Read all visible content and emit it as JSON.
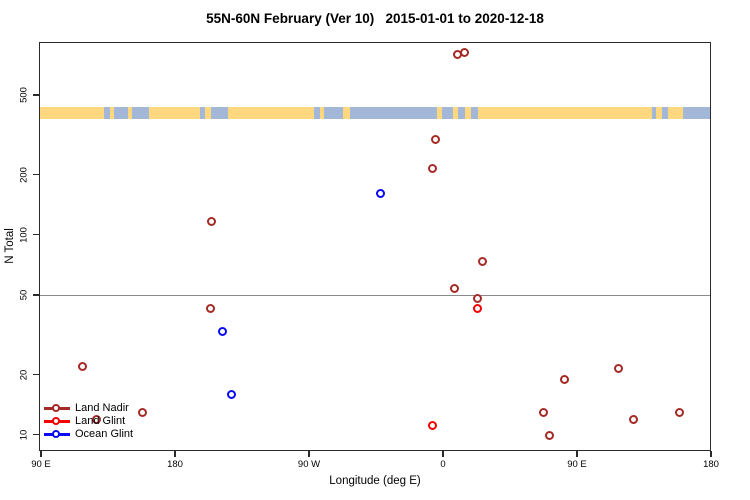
{
  "title": "55N-60N February (Ver 10)   2015-01-01 to 2020-12-18",
  "axes": {
    "xlabel": "Longitude (deg E)",
    "ylabel": "N Total",
    "x_ticks": [
      {
        "label": "90 E",
        "deg": 90
      },
      {
        "label": "180",
        "deg": 180
      },
      {
        "label": "90 W",
        "deg": 270
      },
      {
        "label": "0",
        "deg": 360
      },
      {
        "label": "90 E",
        "deg": 450
      },
      {
        "label": "180",
        "deg": 540
      }
    ],
    "y_ticks": [
      {
        "label": "500",
        "value": 500
      },
      {
        "label": "200",
        "value": 200
      },
      {
        "label": "100",
        "value": 100
      },
      {
        "label": "50",
        "value": 50
      },
      {
        "label": "20",
        "value": 20
      },
      {
        "label": "10",
        "value": 10
      }
    ],
    "reference_line_value": 50
  },
  "legend": {
    "items": [
      {
        "label": "Land Nadir",
        "color": "#A52A26"
      },
      {
        "label": "Land Glint",
        "color": "#F40000"
      },
      {
        "label": "Ocean Glint",
        "color": "#0A0AF5"
      }
    ]
  },
  "map_strip": {
    "ocean_color": "#A3B8D8",
    "land_color": "#FFD77E",
    "land_segments": [
      [
        0.0,
        0.096
      ],
      [
        0.104,
        0.11
      ],
      [
        0.132,
        0.138
      ],
      [
        0.163,
        0.239
      ],
      [
        0.247,
        0.255
      ],
      [
        0.28,
        0.409
      ],
      [
        0.418,
        0.424
      ],
      [
        0.452,
        0.462
      ],
      [
        0.593,
        0.6
      ],
      [
        0.616,
        0.624
      ],
      [
        0.634,
        0.643
      ],
      [
        0.653,
        0.913
      ],
      [
        0.92,
        0.929
      ],
      [
        0.938,
        0.96
      ]
    ]
  },
  "chart_data": {
    "type": "scatter",
    "title": "55N-60N February (Ver 10)   2015-01-01 to 2020-12-18",
    "xlabel": "Longitude (deg E)",
    "ylabel": "N Total",
    "x_axis_deg_range": [
      90,
      540
    ],
    "y_axis_log_range": [
      7.5,
      1000
    ],
    "grid": false,
    "legend_position": "bottom-left",
    "reference_line_y": 50,
    "series": [
      {
        "name": "Land Nadir",
        "color": "#A52A26",
        "marker": "open-circle",
        "points": [
          {
            "x": 117.5,
            "y": 22
          },
          {
            "x": 127,
            "y": 12
          },
          {
            "x": 158,
            "y": 13
          },
          {
            "x": 203.5,
            "y": 43
          },
          {
            "x": 204,
            "y": 117
          },
          {
            "x": 352.5,
            "y": 215
          },
          {
            "x": 355,
            "y": 300
          },
          {
            "x": 367.5,
            "y": 54
          },
          {
            "x": 369.5,
            "y": 800
          },
          {
            "x": 374.5,
            "y": 815
          },
          {
            "x": 383,
            "y": 48
          },
          {
            "x": 386.5,
            "y": 74
          },
          {
            "x": 427,
            "y": 13
          },
          {
            "x": 431,
            "y": 10
          },
          {
            "x": 441,
            "y": 19
          },
          {
            "x": 477.5,
            "y": 21.5
          },
          {
            "x": 488,
            "y": 12
          },
          {
            "x": 518.5,
            "y": 13
          }
        ]
      },
      {
        "name": "Land Glint",
        "color": "#F40000",
        "marker": "open-circle",
        "points": [
          {
            "x": 353,
            "y": 11.2
          },
          {
            "x": 383,
            "y": 43
          }
        ]
      },
      {
        "name": "Ocean Glint",
        "color": "#0A0AF5",
        "marker": "open-circle",
        "points": [
          {
            "x": 211.5,
            "y": 33
          },
          {
            "x": 217.5,
            "y": 16
          },
          {
            "x": 317.5,
            "y": 162
          }
        ]
      }
    ]
  }
}
